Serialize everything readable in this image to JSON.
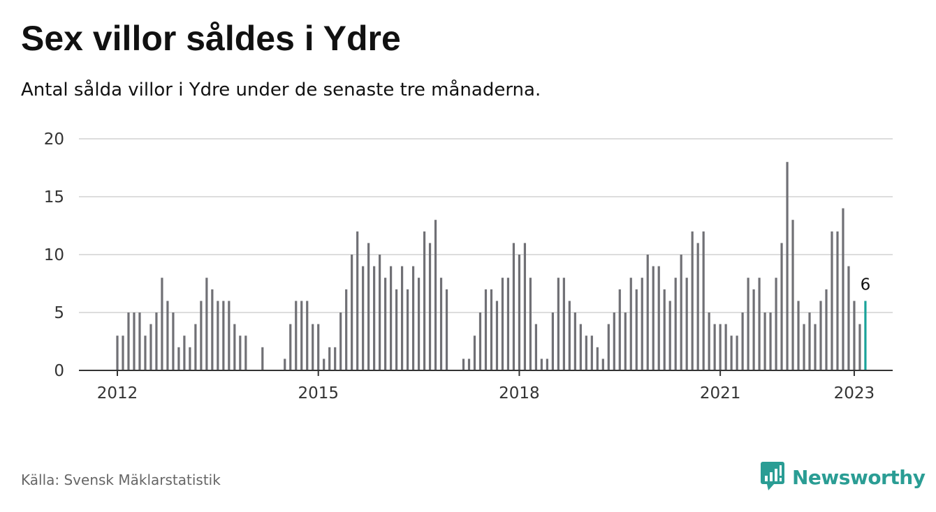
{
  "title": "Sex villor såldes i Ydre",
  "subtitle": "Antal sålda villor i Ydre under de senaste tre månaderna.",
  "source": "Källa: Svensk Mäklarstatistik",
  "brand": "Newsworthy",
  "colors": {
    "bar": "#707075",
    "highlight": "#1aa39a",
    "grid": "#dddddd",
    "axis": "#333333",
    "brand": "#2a9d94"
  },
  "icons": {
    "brand_logo": "newsworthy-logo-icon"
  },
  "chart_data": {
    "type": "bar",
    "title": "Sex villor såldes i Ydre",
    "subtitle": "Antal sålda villor i Ydre under de senaste tre månaderna.",
    "xlabel": "",
    "ylabel": "",
    "ylim": [
      0,
      20
    ],
    "yticks": [
      0,
      5,
      10,
      15,
      20
    ],
    "xticks": [
      "2012",
      "2015",
      "2018",
      "2021",
      "2023"
    ],
    "grid": true,
    "start": "2012-01",
    "end": "2023-01",
    "highlight_label": "6",
    "values": [
      3,
      3,
      5,
      5,
      5,
      3,
      4,
      5,
      8,
      6,
      5,
      2,
      3,
      2,
      4,
      6,
      8,
      7,
      6,
      6,
      6,
      4,
      3,
      3,
      0,
      0,
      2,
      0,
      0,
      0,
      1,
      4,
      6,
      6,
      6,
      4,
      4,
      1,
      2,
      2,
      5,
      7,
      10,
      12,
      9,
      11,
      9,
      10,
      8,
      9,
      7,
      9,
      7,
      9,
      8,
      12,
      11,
      13,
      8,
      7,
      0,
      0,
      1,
      1,
      3,
      5,
      7,
      7,
      6,
      8,
      8,
      11,
      10,
      11,
      8,
      4,
      1,
      1,
      5,
      8,
      8,
      6,
      5,
      4,
      3,
      3,
      2,
      1,
      4,
      5,
      7,
      5,
      8,
      7,
      8,
      10,
      9,
      9,
      7,
      6,
      8,
      10,
      8,
      12,
      11,
      12,
      5,
      4,
      4,
      4,
      3,
      3,
      5,
      8,
      7,
      8,
      5,
      5,
      8,
      11,
      18,
      13,
      6,
      4,
      5,
      4,
      6,
      7,
      12,
      12,
      14,
      9,
      6,
      4,
      6
    ]
  }
}
